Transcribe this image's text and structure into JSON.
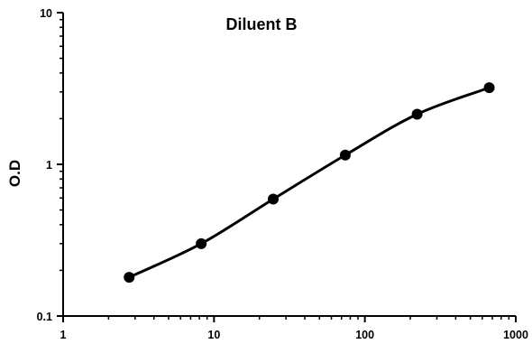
{
  "chart_data": {
    "type": "line",
    "title": "Diluent B",
    "xlabel": "",
    "ylabel": "O.D",
    "x_scale": "log",
    "y_scale": "log",
    "xlim": [
      1,
      1000
    ],
    "ylim": [
      0.1,
      10
    ],
    "x_ticks": [
      "1",
      "10",
      "100",
      "1000"
    ],
    "y_ticks": [
      "0.1",
      "1",
      "10"
    ],
    "grid": false,
    "legend": "none",
    "series": [
      {
        "x": [
          2.74,
          8.23,
          24.7,
          74.1,
          222,
          667
        ],
        "y": [
          0.18,
          0.3,
          0.59,
          1.15,
          2.14,
          3.2
        ],
        "marker": "circle",
        "line": "smooth"
      }
    ],
    "colors": {
      "line": "#000000",
      "marker": "#000000",
      "axis": "#000000"
    }
  }
}
